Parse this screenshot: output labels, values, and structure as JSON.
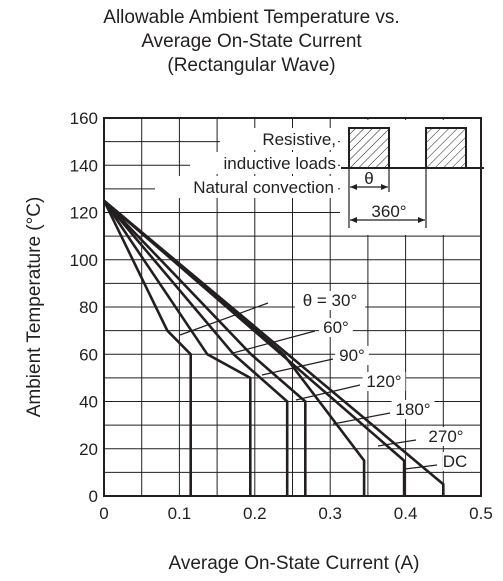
{
  "chart_data": {
    "type": "line",
    "title": [
      "Allowable Ambient Temperature vs.",
      "Average On-State Current",
      "(Rectangular Wave)"
    ],
    "xlabel": "Average On-State Current  (A)",
    "ylabel": "Ambient Temperature  (°C)",
    "xlim": [
      0,
      0.5
    ],
    "ylim": [
      0,
      160
    ],
    "x_ticks": [
      "0",
      "0.1",
      "0.2",
      "0.3",
      "0.4",
      "0.5"
    ],
    "y_ticks": [
      "0",
      "20",
      "40",
      "60",
      "80",
      "100",
      "120",
      "140",
      "160"
    ],
    "grid": true,
    "legend": "none",
    "series": [
      {
        "name": "θ = 30°",
        "points": [
          [
            0,
            125
          ],
          [
            0.084,
            70
          ],
          [
            0.115,
            60
          ],
          [
            0.115,
            0
          ]
        ]
      },
      {
        "name": "60°",
        "points": [
          [
            0,
            125
          ],
          [
            0.137,
            60
          ],
          [
            0.194,
            50
          ],
          [
            0.194,
            0
          ]
        ]
      },
      {
        "name": "90°",
        "points": [
          [
            0,
            125
          ],
          [
            0.172,
            60
          ],
          [
            0.243,
            40
          ],
          [
            0.243,
            0
          ]
        ]
      },
      {
        "name": "120°",
        "points": [
          [
            0,
            125
          ],
          [
            0.195,
            60
          ],
          [
            0.267,
            40
          ],
          [
            0.267,
            0
          ]
        ]
      },
      {
        "name": "180°",
        "points": [
          [
            0,
            125
          ],
          [
            0.238,
            60
          ],
          [
            0.345,
            15
          ],
          [
            0.345,
            0
          ]
        ]
      },
      {
        "name": "270°",
        "points": [
          [
            0,
            125
          ],
          [
            0.398,
            15
          ],
          [
            0.398,
            0
          ]
        ]
      },
      {
        "name": "DC",
        "points": [
          [
            0,
            125
          ],
          [
            0.45,
            5
          ],
          [
            0.45,
            0
          ]
        ]
      }
    ],
    "annotations": [
      "Resistive,",
      "inductive loads",
      "Natural convection",
      "θ",
      "360°"
    ]
  }
}
